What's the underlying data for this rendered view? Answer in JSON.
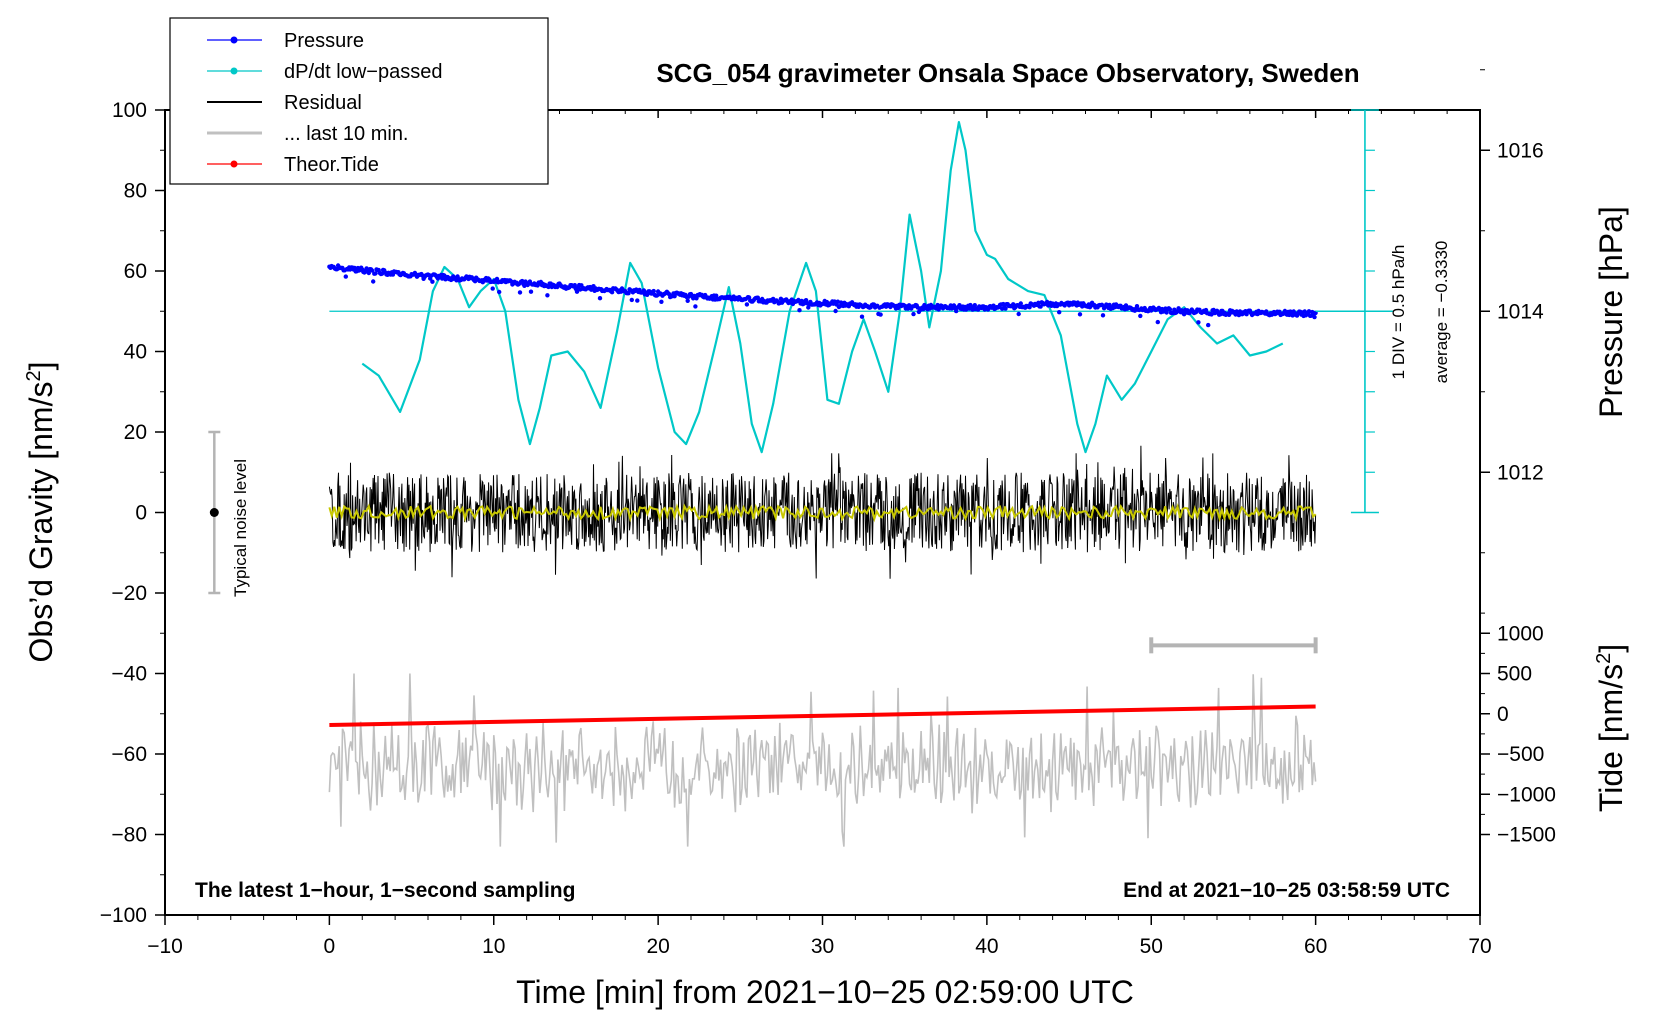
{
  "chart_data": {
    "type": "line",
    "title": "SCG_054 gravimeter Onsala Space Observatory, Sweden",
    "xlabel": "Time [min] from 2021−10−25 02:59:00 UTC",
    "ylabel_base": "Obs’d Gravity [nm/s",
    "ylabel_sup": "2",
    "ylabel_close": "]",
    "y2label_pressure": "Pressure [hPa]",
    "y2label_tide_base": "Tide [nm/s",
    "y2label_tide_sup": "2",
    "y2label_tide_close": "]",
    "xlim": [
      -10,
      70
    ],
    "ylim": [
      -100,
      100
    ],
    "xticks": [
      -10,
      0,
      10,
      20,
      30,
      40,
      50,
      60,
      70
    ],
    "xtick_labels": [
      "−10",
      "0",
      "10",
      "20",
      "30",
      "40",
      "50",
      "60",
      "70"
    ],
    "yticks": [
      -100,
      -80,
      -60,
      -40,
      -20,
      0,
      20,
      40,
      60,
      80,
      100
    ],
    "ytick_labels": [
      "−100",
      "−80",
      "−60",
      "−40",
      "−20",
      "0",
      "20",
      "40",
      "60",
      "80",
      "100"
    ],
    "pressure_axis": {
      "ticks": [
        1012,
        1014,
        1016
      ],
      "tick_labels": [
        "1012",
        "1014",
        "1016"
      ],
      "gravity_at_1014": 50,
      "gravity_per_hPa": 20
    },
    "tide_axis": {
      "ticks": [
        -1500,
        -1000,
        -500,
        0,
        500,
        1000
      ],
      "tick_labels": [
        "−1500",
        "−1000",
        "−500",
        "0",
        "500",
        "1000"
      ],
      "gravity_at_0": -50,
      "gravity_per_unit": 0.02
    },
    "legend": [
      {
        "label": "Pressure",
        "color": "#0000ff",
        "style": "line-dot"
      },
      {
        "label": "dP/dt low−passed",
        "color": "#00c8c8",
        "style": "line-dot"
      },
      {
        "label": "Residual",
        "color": "#000000",
        "style": "line"
      },
      {
        "label": "... last 10 min.",
        "color": "#c0c0c0",
        "style": "line"
      },
      {
        "label": "Theor.Tide",
        "color": "#ff0000",
        "style": "line-dot"
      }
    ],
    "series": [
      {
        "name": "Pressure",
        "color": "#0000ff",
        "x": [
          0,
          5,
          10,
          15,
          20,
          25,
          30,
          35,
          40,
          45,
          50,
          55,
          60
        ],
        "y_hPa": [
          1014.55,
          1014.45,
          1014.38,
          1014.3,
          1014.22,
          1014.15,
          1014.1,
          1014.05,
          1014.05,
          1014.1,
          1014.02,
          1013.98,
          1013.97
        ]
      },
      {
        "name": "dP/dt low−passed",
        "color": "#00c8c8",
        "x": [
          2,
          3,
          4.3,
          5.5,
          6.3,
          7,
          7.8,
          8.5,
          9.2,
          10,
          10.7,
          11.5,
          12.2,
          12.8,
          13.5,
          14.5,
          15.5,
          16.5,
          17.5,
          18.3,
          19,
          20,
          21,
          21.7,
          22.5,
          23.5,
          24.3,
          25,
          25.7,
          26.3,
          27,
          28,
          29,
          29.6,
          30.3,
          31,
          31.8,
          32.5,
          33.2,
          34,
          34.7,
          35.3,
          36,
          36.5,
          37.2,
          37.8,
          38.3,
          38.7,
          39.3,
          40,
          40.5,
          41.3,
          42.5,
          43.5,
          44.5,
          45.5,
          46,
          46.6,
          47.3,
          48.2,
          49,
          50,
          51,
          52,
          53,
          54,
          55,
          56,
          57,
          58
        ],
        "y": [
          37,
          34,
          25,
          38,
          55,
          61,
          58,
          51,
          55,
          58,
          50,
          28,
          17,
          26,
          39,
          40,
          35,
          26,
          45,
          62,
          57,
          36,
          20,
          17,
          25,
          42,
          56,
          42,
          22,
          15,
          27,
          50,
          62,
          55,
          28,
          27,
          40,
          48,
          40,
          30,
          50,
          74,
          60,
          46,
          60,
          85,
          97,
          90,
          70,
          64,
          63,
          58,
          55,
          54,
          44,
          22,
          15,
          22,
          34,
          28,
          32,
          40,
          48,
          51,
          46,
          42,
          44,
          39,
          40,
          42
        ]
      },
      {
        "name": "Residual",
        "color": "#000000",
        "x_range": [
          0,
          60
        ],
        "y_mean": 0,
        "y_spread": 22
      },
      {
        "name": "Residual smoothed",
        "color": "#c8c800",
        "x_range": [
          0,
          60
        ],
        "y_mean": 0,
        "y_spread": 2
      },
      {
        "name": "... last 10 min.",
        "color": "#c0c0c0",
        "x_range": [
          0,
          60
        ],
        "y_mean": -63,
        "y_min": -83,
        "y_max": -40
      },
      {
        "name": "Theor.Tide",
        "color": "#ff0000",
        "x": [
          0,
          60
        ],
        "y_tide": [
          -140,
          90
        ]
      }
    ],
    "zero_reference_line": {
      "x": [
        0,
        60
      ],
      "y": 50,
      "color": "#00c8c8"
    },
    "div_scale": {
      "x": 63,
      "y_range": [
        0,
        100
      ],
      "label": "1 DIV = 0.5 hPa/h",
      "average_label": "average = −0.3330"
    },
    "noise_bar": {
      "x": -7,
      "y_range": [
        -20,
        20
      ],
      "label": "Typical noise level"
    },
    "last10_bar": {
      "x_range": [
        50,
        60
      ],
      "y": -33
    },
    "footer_left": "The latest 1−hour, 1−second sampling",
    "footer_right": "End at 2021−10−25 03:58:59 UTC"
  }
}
